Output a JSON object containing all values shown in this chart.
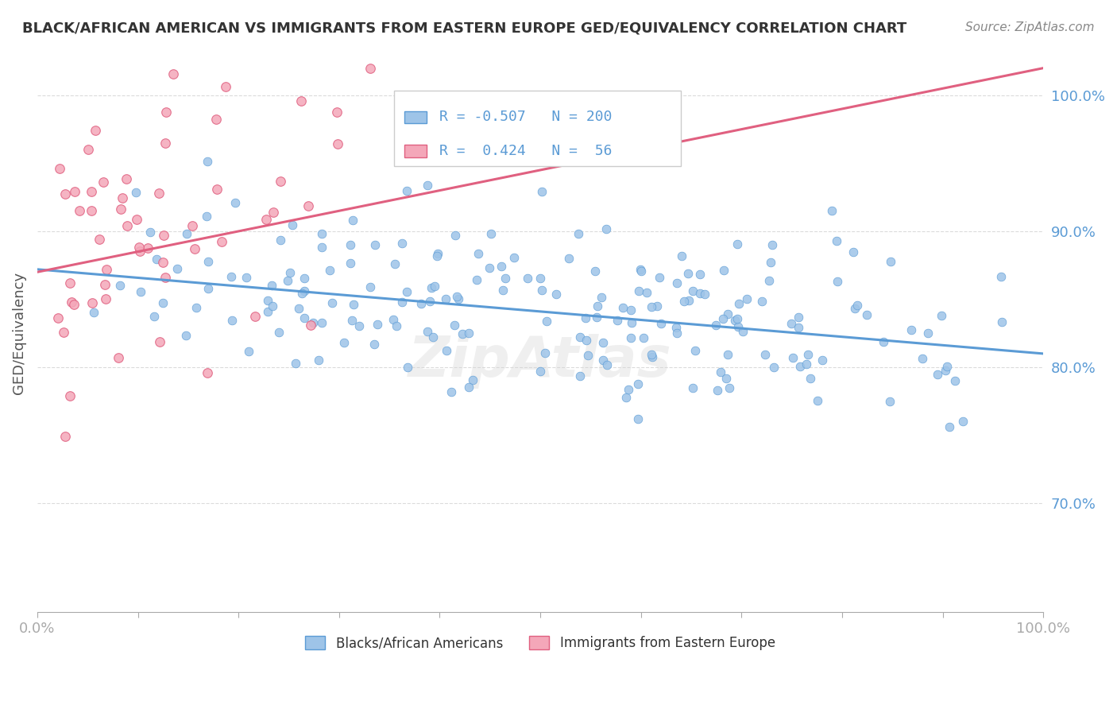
{
  "title": "BLACK/AFRICAN AMERICAN VS IMMIGRANTS FROM EASTERN EUROPE GED/EQUIVALENCY CORRELATION CHART",
  "source": "Source: ZipAtlas.com",
  "ylabel": "GED/Equivalency",
  "xlim": [
    0.0,
    1.0
  ],
  "ylim": [
    0.62,
    1.03
  ],
  "yticks": [
    0.7,
    0.8,
    0.9,
    1.0
  ],
  "ytick_labels": [
    "70.0%",
    "80.0%",
    "90.0%",
    "100.0%"
  ],
  "legend_blue_R": "-0.507",
  "legend_blue_N": "200",
  "legend_pink_R": " 0.424",
  "legend_pink_N": " 56",
  "blue_color": "#9ec4e8",
  "pink_color": "#f4a7b9",
  "blue_edge_color": "#5b9bd5",
  "pink_edge_color": "#e06080",
  "blue_line_color": "#5b9bd5",
  "pink_line_color": "#e06080",
  "watermark": "ZipAtlas",
  "legend_label_blue": "Blacks/African Americans",
  "legend_label_pink": "Immigrants from Eastern Europe",
  "blue_trend_x": [
    0.0,
    1.0
  ],
  "blue_trend_y": [
    0.872,
    0.81
  ],
  "pink_trend_x": [
    0.0,
    1.0
  ],
  "pink_trend_y": [
    0.87,
    1.02
  ],
  "background_color": "#ffffff",
  "grid_color": "#cccccc",
  "title_color": "#333333",
  "axis_label_color": "#5b9bd5",
  "blue_seed": 42,
  "pink_seed": 99,
  "n_blue": 200,
  "n_pink": 56
}
